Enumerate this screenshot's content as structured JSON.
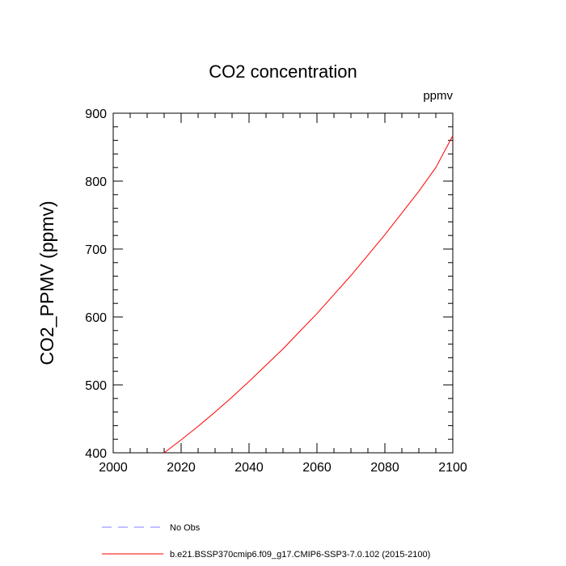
{
  "chart_data": {
    "type": "line",
    "title": "CO2 concentration",
    "units": "ppmv",
    "ylabel": "CO2_PPMV  (ppmv)",
    "xlabel": "",
    "xlim": [
      2000,
      2100
    ],
    "ylim": [
      400,
      900
    ],
    "xticks": [
      2000,
      2020,
      2040,
      2060,
      2080,
      2100
    ],
    "yticks": [
      400,
      500,
      600,
      700,
      800,
      900
    ],
    "x_minor_step": 5,
    "y_minor_step": 20,
    "grid": false,
    "legend_position": "bottom-left",
    "series": [
      {
        "name": "No Obs",
        "style": "dashed",
        "color": "#8080ff",
        "x": [],
        "y": []
      },
      {
        "name": "b.e21.BSSP370cmip6.f09_g17.CMIP6-SSP3-7.0.102 (2015-2100)",
        "style": "solid",
        "color": "#ff0000",
        "x": [
          2015,
          2020,
          2025,
          2030,
          2035,
          2040,
          2045,
          2050,
          2055,
          2060,
          2065,
          2070,
          2075,
          2080,
          2085,
          2090,
          2095,
          2100
        ],
        "y": [
          400,
          419,
          439,
          460,
          482,
          505,
          529,
          553,
          579,
          605,
          633,
          661,
          691,
          721,
          753,
          785,
          820,
          867
        ]
      }
    ]
  }
}
